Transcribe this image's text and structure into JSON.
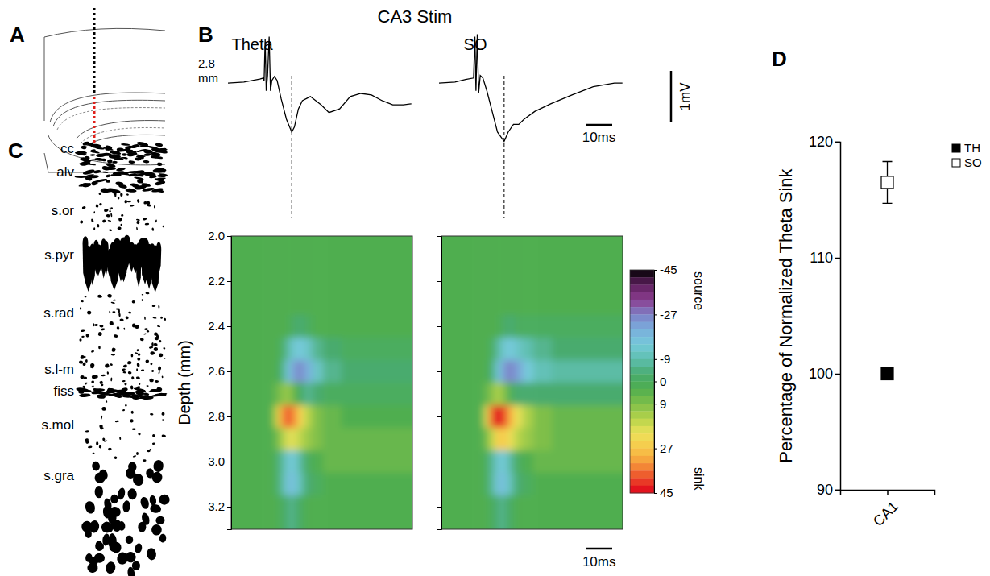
{
  "figure": {
    "title": "CA3 Stim",
    "panel_labels": [
      "A",
      "B",
      "C",
      "D"
    ],
    "layers": [
      "cc",
      "alv",
      "s.or",
      "s.pyr",
      "s.rad",
      "s.l-m",
      "fiss",
      "s.mol",
      "s.gra"
    ]
  },
  "chart_data": [
    {
      "type": "line",
      "tick_labels": false,
      "annotations": [
        "2.8 mm"
      ],
      "scale_bar": {
        "x": 10,
        "x_label": "10ms",
        "y": 1,
        "y_label": "1mV"
      },
      "series": [
        {
          "name": "Theta",
          "color": "#000000",
          "peak_time": 24,
          "x": [
            0,
            6,
            12,
            13.3,
            13.6,
            14.0,
            14.4,
            14.9,
            15.5,
            16.0,
            16.5,
            17.5,
            18.5,
            20,
            22,
            24,
            25,
            26.5,
            28,
            31,
            35,
            38,
            42,
            46,
            50,
            54,
            58,
            62,
            66,
            69
          ],
          "values": [
            -0.05,
            -0.03,
            0.03,
            0.05,
            0.0,
            0.8,
            -0.2,
            0.1,
            0.85,
            -0.2,
            0.0,
            0.08,
            0.0,
            -0.35,
            -0.75,
            -1.0,
            -0.9,
            -0.55,
            -0.39,
            -0.31,
            -0.47,
            -0.62,
            -0.55,
            -0.31,
            -0.25,
            -0.28,
            -0.39,
            -0.47,
            -0.47,
            -0.45
          ]
        },
        {
          "name": "SO",
          "color": "#000000",
          "peak_time": 24.5,
          "x": [
            0,
            6,
            10,
            13,
            13.5,
            13.9,
            14.4,
            14.9,
            15.5,
            16.5,
            18,
            20,
            22,
            24.5,
            26,
            28,
            30,
            32,
            36,
            42,
            50,
            58,
            66,
            69
          ],
          "values": [
            -0.05,
            -0.03,
            0.02,
            0.05,
            0.85,
            -0.2,
            0.9,
            -0.25,
            0.1,
            0.05,
            -0.2,
            -0.6,
            -1.0,
            -1.18,
            -1.0,
            -0.85,
            -0.85,
            -0.75,
            -0.6,
            -0.45,
            -0.28,
            -0.12,
            -0.05,
            -0.05
          ]
        }
      ]
    },
    {
      "type": "heatmap",
      "y_label": "Depth (mm)",
      "tick_labels": "y",
      "xlim": [
        0,
        69
      ],
      "ylim": [
        2,
        3.3
      ],
      "yticks": [
        {
          "value": 2,
          "label": "2.0"
        },
        2.2,
        2.4,
        2.6,
        2.8,
        {
          "value": 3,
          "label": "3.0"
        },
        3.2
      ],
      "x_edges": [
        0,
        13,
        16,
        18,
        20,
        22,
        24,
        26,
        28,
        31,
        35,
        42,
        52,
        69
      ],
      "y_edges": [
        2,
        2.15,
        2.25,
        2.35,
        2.45,
        2.55,
        2.65,
        2.75,
        2.85,
        2.95,
        3.05,
        3.15,
        3.3
      ],
      "scale_bar": {
        "x": 10,
        "x_label": "10ms"
      },
      "colorbar": {
        "range": [
          -45,
          45
        ],
        "ticks": [
          -45,
          -27,
          -9,
          0,
          9,
          27,
          45
        ],
        "labels": [
          "source",
          "sink"
        ],
        "colors": [
          "#000000",
          "#5e1f5e",
          "#8b3d8f",
          "#7d7fc6",
          "#7aaedc",
          "#74c9d9",
          "#5fbfb0",
          "#48ab6e",
          "#4fae4f",
          "#7fbf4a",
          "#b5d34a",
          "#ece15a",
          "#f8c84a",
          "#f59a3a",
          "#ec4a2a",
          "#e0001a"
        ]
      },
      "series": [
        {
          "z": [
            [
              3,
              3,
              3,
              3,
              3,
              3,
              3,
              3,
              3,
              3,
              3,
              3,
              3
            ],
            [
              3,
              3,
              3,
              3,
              3,
              3,
              3,
              3,
              3,
              3,
              3,
              3,
              3
            ],
            [
              3,
              3,
              3,
              3,
              3,
              3,
              3,
              3,
              3,
              3,
              3,
              3,
              3
            ],
            [
              3,
              3,
              3,
              3,
              3,
              0,
              -3,
              -3,
              0,
              3,
              3,
              3,
              3
            ],
            [
              3,
              3,
              3,
              0,
              -6,
              -12,
              -15,
              -15,
              -12,
              -6,
              -3,
              0,
              0
            ],
            [
              3,
              3,
              3,
              -3,
              -12,
              -20,
              -25,
              -25,
              -20,
              -12,
              -6,
              -3,
              -3
            ],
            [
              3,
              3,
              6,
              9,
              12,
              9,
              3,
              -3,
              -6,
              -3,
              0,
              0,
              0
            ],
            [
              3,
              3,
              15,
              30,
              38,
              36,
              30,
              22,
              15,
              9,
              6,
              3,
              3
            ],
            [
              3,
              3,
              6,
              12,
              18,
              20,
              18,
              15,
              12,
              9,
              6,
              6,
              6
            ],
            [
              3,
              3,
              0,
              -6,
              -12,
              -15,
              -12,
              -6,
              0,
              3,
              6,
              6,
              6
            ],
            [
              3,
              3,
              0,
              -6,
              -14,
              -18,
              -14,
              -8,
              -3,
              0,
              3,
              3,
              3
            ],
            [
              3,
              3,
              3,
              0,
              -3,
              -6,
              -3,
              0,
              3,
              3,
              3,
              3,
              3
            ]
          ]
        },
        {
          "z": [
            [
              3,
              3,
              3,
              3,
              3,
              3,
              3,
              3,
              3,
              3,
              3,
              3,
              3
            ],
            [
              3,
              3,
              3,
              3,
              3,
              3,
              3,
              3,
              3,
              3,
              3,
              3,
              3
            ],
            [
              3,
              3,
              3,
              3,
              3,
              3,
              3,
              3,
              3,
              3,
              3,
              3,
              3
            ],
            [
              3,
              3,
              3,
              3,
              3,
              0,
              -3,
              -3,
              0,
              0,
              0,
              0,
              0
            ],
            [
              3,
              3,
              3,
              0,
              -6,
              -12,
              -15,
              -15,
              -12,
              -9,
              -6,
              -3,
              -3
            ],
            [
              3,
              3,
              3,
              -3,
              -12,
              -20,
              -26,
              -26,
              -22,
              -15,
              -10,
              -8,
              -8
            ],
            [
              3,
              3,
              6,
              9,
              14,
              12,
              6,
              0,
              -3,
              -3,
              -3,
              -3,
              -3
            ],
            [
              3,
              3,
              18,
              36,
              45,
              42,
              35,
              27,
              20,
              14,
              9,
              6,
              6
            ],
            [
              3,
              3,
              8,
              15,
              24,
              27,
              24,
              20,
              15,
              12,
              9,
              6,
              6
            ],
            [
              3,
              3,
              0,
              -6,
              -12,
              -15,
              -12,
              -6,
              0,
              3,
              6,
              6,
              6
            ],
            [
              3,
              3,
              0,
              -6,
              -14,
              -18,
              -14,
              -8,
              -3,
              0,
              3,
              3,
              3
            ],
            [
              3,
              3,
              3,
              0,
              -3,
              -6,
              -3,
              0,
              3,
              3,
              3,
              3,
              3
            ]
          ]
        }
      ]
    },
    {
      "type": "scatter",
      "y_label": "Percentage of Normalized Theta Sink",
      "categories": [
        "CA1"
      ],
      "ylim": [
        90,
        120
      ],
      "yticks": [
        90,
        100,
        110,
        120
      ],
      "legend": "top-right",
      "series": [
        {
          "name": "TH",
          "color": "#000000",
          "marker": "square",
          "values": [
            100
          ]
        },
        {
          "name": "SO",
          "color": "#000000",
          "marker": "open-square",
          "values": [
            116.5
          ],
          "error": [
            1.8
          ]
        }
      ]
    }
  ]
}
